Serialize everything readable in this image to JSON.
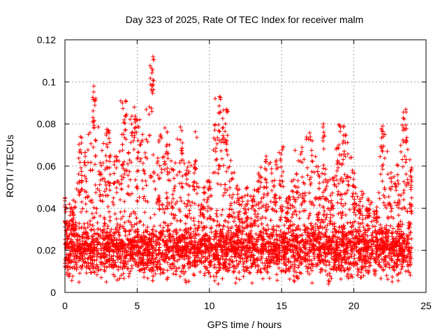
{
  "chart_data": {
    "type": "scatter",
    "title": "Day 323 of 2025, Rate Of TEC Index for receiver malm",
    "xlabel": "GPS time / hours",
    "ylabel": "ROTI / TECUs",
    "xlim": [
      0,
      25
    ],
    "ylim": [
      0,
      0.12
    ],
    "xticks": [
      0,
      5,
      10,
      15,
      20,
      25
    ],
    "xtick_labels": [
      "0",
      "5",
      "10",
      "15",
      "20",
      "25"
    ],
    "yticks": [
      0,
      0.02,
      0.04,
      0.06,
      0.08,
      0.1,
      0.12
    ],
    "ytick_labels": [
      "0",
      "0.02",
      "0.04",
      "0.06",
      "0.08",
      "0.1",
      "0.12"
    ],
    "grid": true,
    "marker": "+",
    "series_color": "#ff0000",
    "data_x_range_hours": [
      0,
      24
    ],
    "baseline_roti": 0.02,
    "envelope": {
      "hours": [
        0,
        0.5,
        1,
        1.5,
        2,
        2.5,
        3,
        3.5,
        4,
        4.5,
        5,
        5.5,
        6,
        6.5,
        7,
        7.5,
        8,
        8.5,
        9,
        9.5,
        10,
        10.5,
        11,
        11.5,
        12,
        12.5,
        13,
        13.5,
        14,
        14.5,
        15,
        15.5,
        16,
        16.5,
        17,
        17.5,
        18,
        18.5,
        19,
        19.5,
        20,
        20.5,
        21,
        21.5,
        22,
        22.5,
        23,
        23.5,
        24
      ],
      "max_roti": [
        0.046,
        0.04,
        0.077,
        0.068,
        0.098,
        0.068,
        0.08,
        0.065,
        0.091,
        0.088,
        0.083,
        0.082,
        0.112,
        0.075,
        0.08,
        0.065,
        0.082,
        0.06,
        0.077,
        0.05,
        0.055,
        0.093,
        0.087,
        0.063,
        0.052,
        0.05,
        0.046,
        0.06,
        0.068,
        0.065,
        0.07,
        0.045,
        0.068,
        0.07,
        0.08,
        0.06,
        0.06,
        0.055,
        0.08,
        0.075,
        0.06,
        0.05,
        0.045,
        0.042,
        0.079,
        0.063,
        0.063,
        0.087,
        0.06
      ]
    },
    "peaks": [
      {
        "x": 2.0,
        "y": 0.098
      },
      {
        "x": 4.2,
        "y": 0.091
      },
      {
        "x": 4.8,
        "y": 0.088
      },
      {
        "x": 6.1,
        "y": 0.112
      },
      {
        "x": 10.7,
        "y": 0.093
      },
      {
        "x": 11.2,
        "y": 0.087
      },
      {
        "x": 17.9,
        "y": 0.08
      },
      {
        "x": 19.3,
        "y": 0.079
      },
      {
        "x": 22.0,
        "y": 0.079
      },
      {
        "x": 23.6,
        "y": 0.087
      }
    ]
  }
}
